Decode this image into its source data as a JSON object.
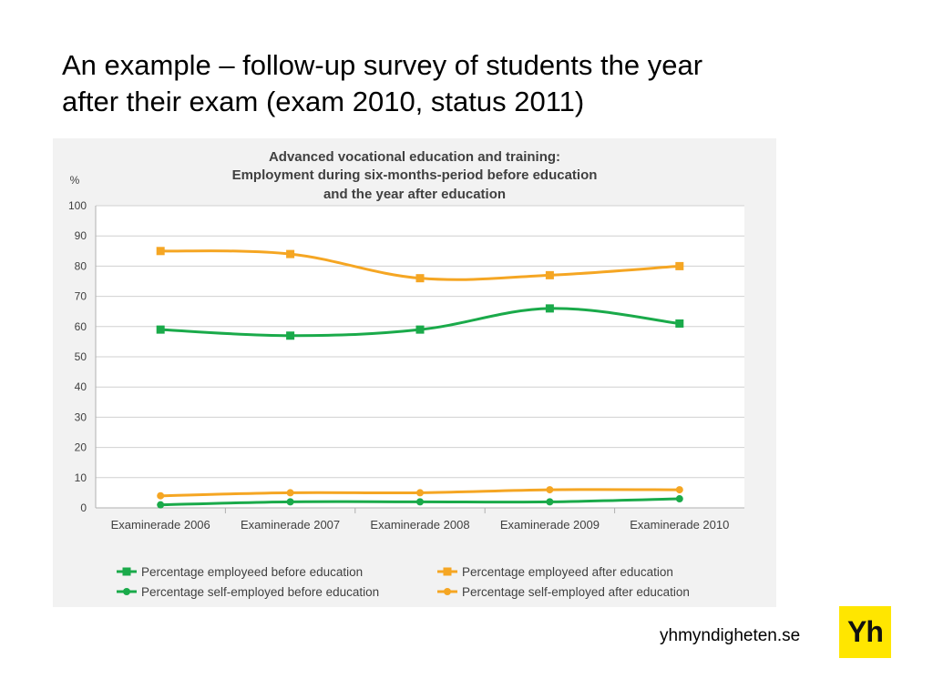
{
  "slide": {
    "title_lines": [
      "An example – follow-up survey of students the year",
      "after their exam (exam 2010, status 2011)"
    ],
    "footer_url": "yhmyndigheten.se",
    "logo_text": "Yh"
  },
  "colors": {
    "green": "#1aaa4a",
    "orange": "#f5a623",
    "panel_bg": "#f2f2f2",
    "logo_bg": "#ffe600"
  },
  "chart_data": {
    "type": "line",
    "title_lines": [
      "Advanced vocational education and training:",
      "Employment during six-months-period before education",
      "and the year after education"
    ],
    "ylabel": "%",
    "xlabel": "",
    "ylim": [
      0,
      100
    ],
    "yticks": [
      "0",
      "10",
      "20",
      "30",
      "40",
      "50",
      "60",
      "70",
      "80",
      "90",
      "100"
    ],
    "grid": true,
    "legend_position": "bottom",
    "categories": [
      "Examinerade 2006",
      "Examinerade 2007",
      "Examinerade 2008",
      "Examinerade 2009",
      "Examinerade 2010"
    ],
    "series": [
      {
        "name": "Percentage employeed before education",
        "values": [
          59,
          57,
          59,
          66,
          61
        ],
        "color": "#1aaa4a",
        "marker": "square"
      },
      {
        "name": "Percentage employeed after education",
        "values": [
          85,
          84,
          76,
          77,
          80
        ],
        "color": "#f5a623",
        "marker": "square"
      },
      {
        "name": "Percentage self-employed before education",
        "values": [
          1,
          2,
          2,
          2,
          3
        ],
        "color": "#1aaa4a",
        "marker": "circle"
      },
      {
        "name": "Percentage self-employed after education",
        "values": [
          4,
          5,
          5,
          6,
          6
        ],
        "color": "#f5a623",
        "marker": "circle"
      }
    ]
  }
}
